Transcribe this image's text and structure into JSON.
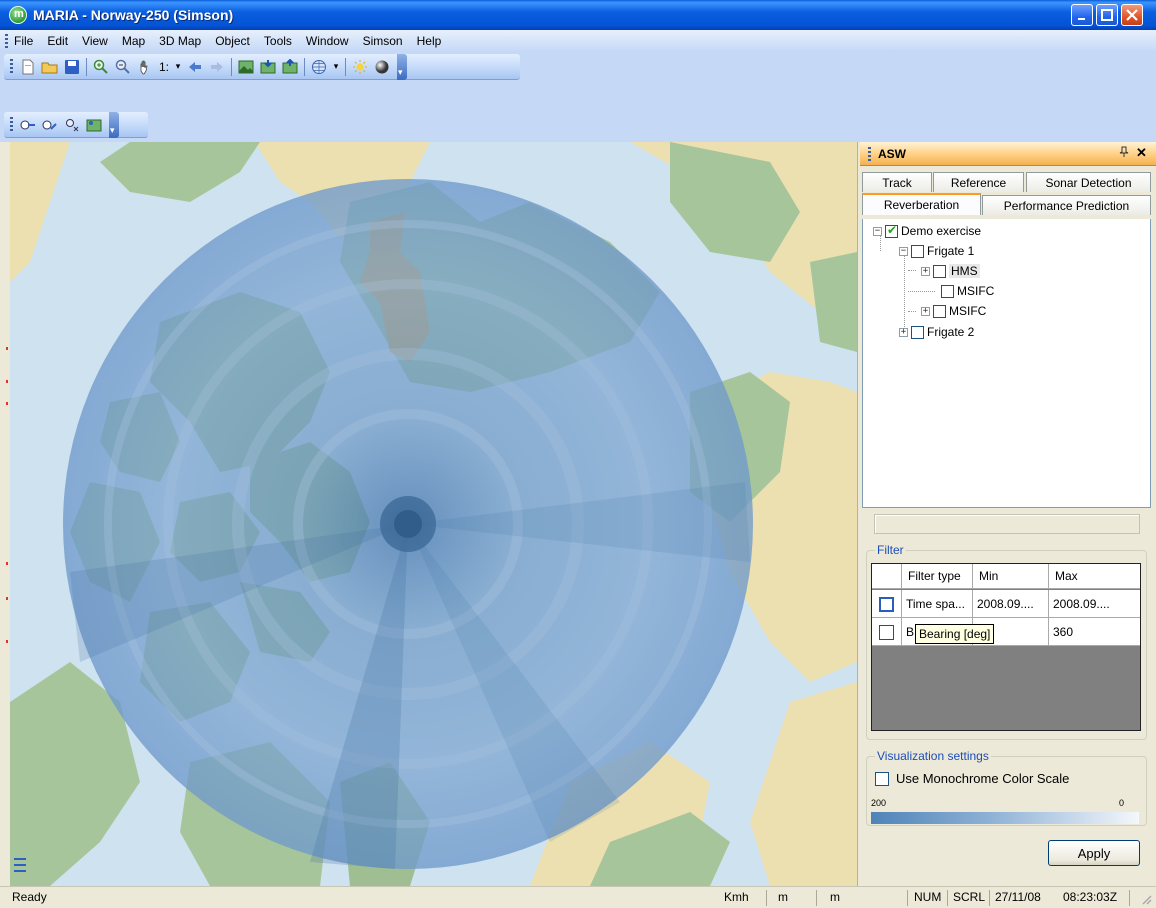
{
  "window": {
    "title": "MARIA - Norway-250 (Simson)",
    "app_icon_letter": "m"
  },
  "menu": [
    "File",
    "Edit",
    "View",
    "Map",
    "3D Map",
    "Object",
    "Tools",
    "Window",
    "Simson",
    "Help"
  ],
  "toolbar1": {
    "scale_label": "1:"
  },
  "asw": {
    "title": "ASW",
    "pin_icon": "pin-icon",
    "tabs_row1": [
      "Track",
      "Reference",
      "Sonar Detection"
    ],
    "tabs_row2": [
      "Reverberation",
      "Performance Prediction"
    ],
    "active_tab": "Reverberation",
    "tree": {
      "root": "Demo exercise",
      "frigate1": "Frigate 1",
      "hms": "HMS",
      "msifc1": "MSIFC",
      "msifc2": "MSIFC",
      "frigate2": "Frigate 2"
    },
    "filter": {
      "legend": "Filter",
      "headers": [
        "Filter type",
        "Min",
        "Max"
      ],
      "rows": [
        {
          "type": "Time spa...",
          "min": "2008.09....",
          "max": "2008.09...."
        },
        {
          "type": "B",
          "min": "",
          "max": "360"
        }
      ],
      "tooltip": "Bearing [deg]"
    },
    "visualization": {
      "legend": "Visualization settings",
      "monochrome_label": "Use Monochrome Color Scale",
      "scale_max": "200",
      "scale_min": "0"
    },
    "apply_label": "Apply"
  },
  "status": {
    "ready": "Ready",
    "speed_unit": "Kmh",
    "unit1": "m",
    "unit2": "m",
    "num": "NUM",
    "scrl": "SCRL",
    "date": "27/11/08",
    "time": "08:23:03Z"
  },
  "colors": {
    "title_blue": "#0453d5",
    "panel_header": "#ffcf83",
    "sonar_circle": "#5a8dc2",
    "water": "#cfe2f0",
    "land_green": "#9fbf93",
    "land_tan": "#ecdfb0",
    "town_orange": "#d9a94f"
  }
}
